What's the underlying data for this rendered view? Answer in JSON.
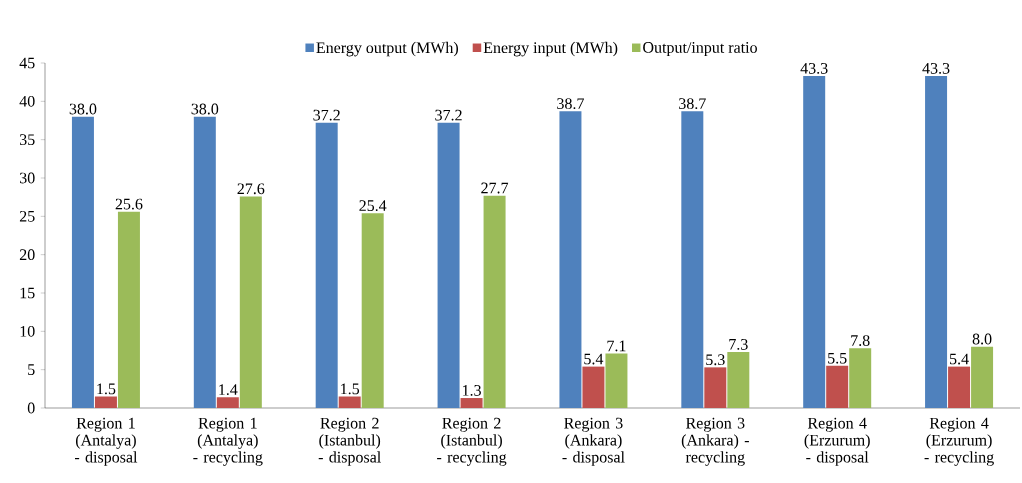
{
  "chart_data": {
    "type": "bar",
    "categories": [
      "Region 1 (Antalya) - disposal",
      "Region 1 (Antalya) - recycling",
      "Region 2 (Istanbul) - disposal",
      "Region 2 (Istanbul) - recycling",
      "Region 3 (Ankara) - disposal",
      "Region 3 (Ankara) - recycling",
      "Region 4 (Erzurum) - disposal",
      "Region 4 (Erzurum) - recycling"
    ],
    "series": [
      {
        "name": "Energy output (MWh)",
        "color": "#4f81bd",
        "values": [
          38.0,
          38.0,
          37.2,
          37.2,
          38.7,
          38.7,
          43.3,
          43.3
        ],
        "value_labels": [
          "38.0",
          "38.0",
          "37.2",
          "37.2",
          "38.7",
          "38.7",
          "43.3",
          "43.3"
        ]
      },
      {
        "name": "Energy input (MWh)",
        "color": "#c0504d",
        "values": [
          1.5,
          1.4,
          1.5,
          1.3,
          5.4,
          5.3,
          5.5,
          5.4
        ],
        "value_labels": [
          "1.5",
          "1.4",
          "1.5",
          "1.3",
          "5.4",
          "5.3",
          "5.5",
          "5.4"
        ]
      },
      {
        "name": "Output/input ratio",
        "color": "#9bbb59",
        "values": [
          25.6,
          27.6,
          25.4,
          27.7,
          7.1,
          7.3,
          7.8,
          8.0
        ],
        "value_labels": [
          "25.6",
          "27.6",
          "25.4",
          "27.7",
          "7.1",
          "7.3",
          "7.8",
          "8.0"
        ]
      }
    ],
    "ylim": [
      0,
      45
    ],
    "yticks": [
      0,
      5,
      10,
      15,
      20,
      25,
      30,
      35,
      40,
      45
    ],
    "legend": "top",
    "grid": false
  }
}
